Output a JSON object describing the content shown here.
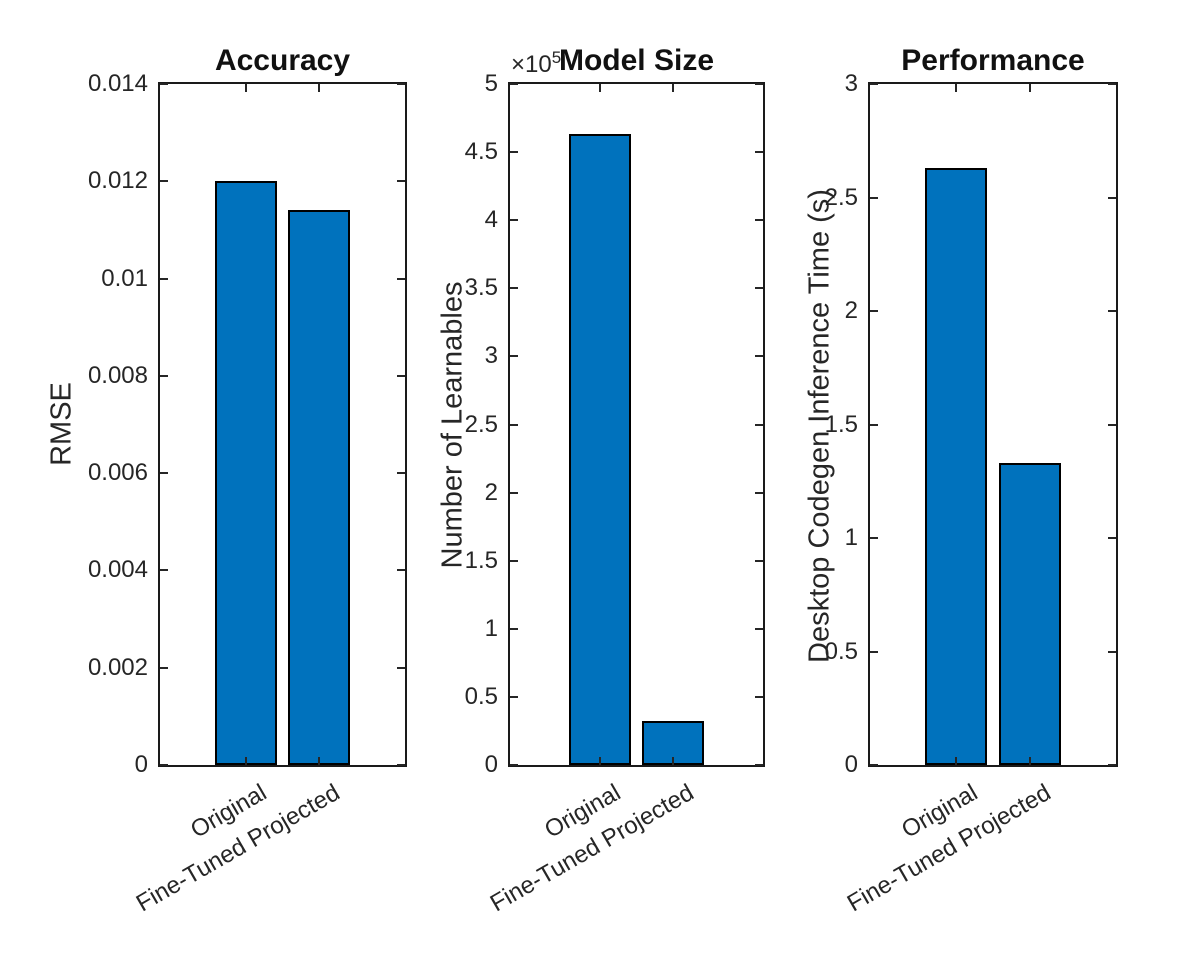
{
  "figure": {
    "background_color": "#FFFFFF",
    "axes_color": "#262626",
    "title_color": "#111111"
  },
  "chart_data": [
    {
      "type": "bar",
      "title": "Accuracy",
      "ylabel": "RMSE",
      "xlabel": "",
      "categories": [
        "Original",
        "Fine-Tuned Projected"
      ],
      "values": [
        0.012,
        0.0114
      ],
      "ylim": [
        0,
        0.014
      ],
      "yticks": [
        0,
        0.002,
        0.004,
        0.006,
        0.008,
        0.01,
        0.012,
        0.014
      ],
      "ytick_labels": [
        "0",
        "0.002",
        "0.004",
        "0.006",
        "0.008",
        "0.01",
        "0.012",
        "0.014"
      ],
      "grid": false,
      "legend": null,
      "bar_color": "#0072BD",
      "bar_edge_color": "#000000"
    },
    {
      "type": "bar",
      "title": "Model Size",
      "ylabel": "Number of Learnables",
      "xlabel": "",
      "categories": [
        "Original",
        "Fine-Tuned Projected"
      ],
      "values": [
        463000,
        32000
      ],
      "ylim": [
        0,
        500000
      ],
      "yticks": [
        0,
        50000,
        100000,
        150000,
        200000,
        250000,
        300000,
        350000,
        400000,
        450000,
        500000
      ],
      "ytick_labels": [
        "0",
        "0.5",
        "1",
        "1.5",
        "2",
        "2.5",
        "3",
        "3.5",
        "4",
        "4.5",
        "5"
      ],
      "y_multiplier": {
        "prefix": "×10",
        "exponent": "5"
      },
      "grid": false,
      "legend": null,
      "bar_color": "#0072BD",
      "bar_edge_color": "#000000"
    },
    {
      "type": "bar",
      "title": "Performance",
      "ylabel": "Desktop Codegen Inference Time (s)",
      "xlabel": "",
      "categories": [
        "Original",
        "Fine-Tuned Projected"
      ],
      "values": [
        2.63,
        1.33
      ],
      "ylim": [
        0,
        3
      ],
      "yticks": [
        0,
        0.5,
        1,
        1.5,
        2,
        2.5,
        3
      ],
      "ytick_labels": [
        "0",
        "0.5",
        "1",
        "1.5",
        "2",
        "2.5",
        "3"
      ],
      "grid": false,
      "legend": null,
      "bar_color": "#0072BD",
      "bar_edge_color": "#000000"
    }
  ]
}
